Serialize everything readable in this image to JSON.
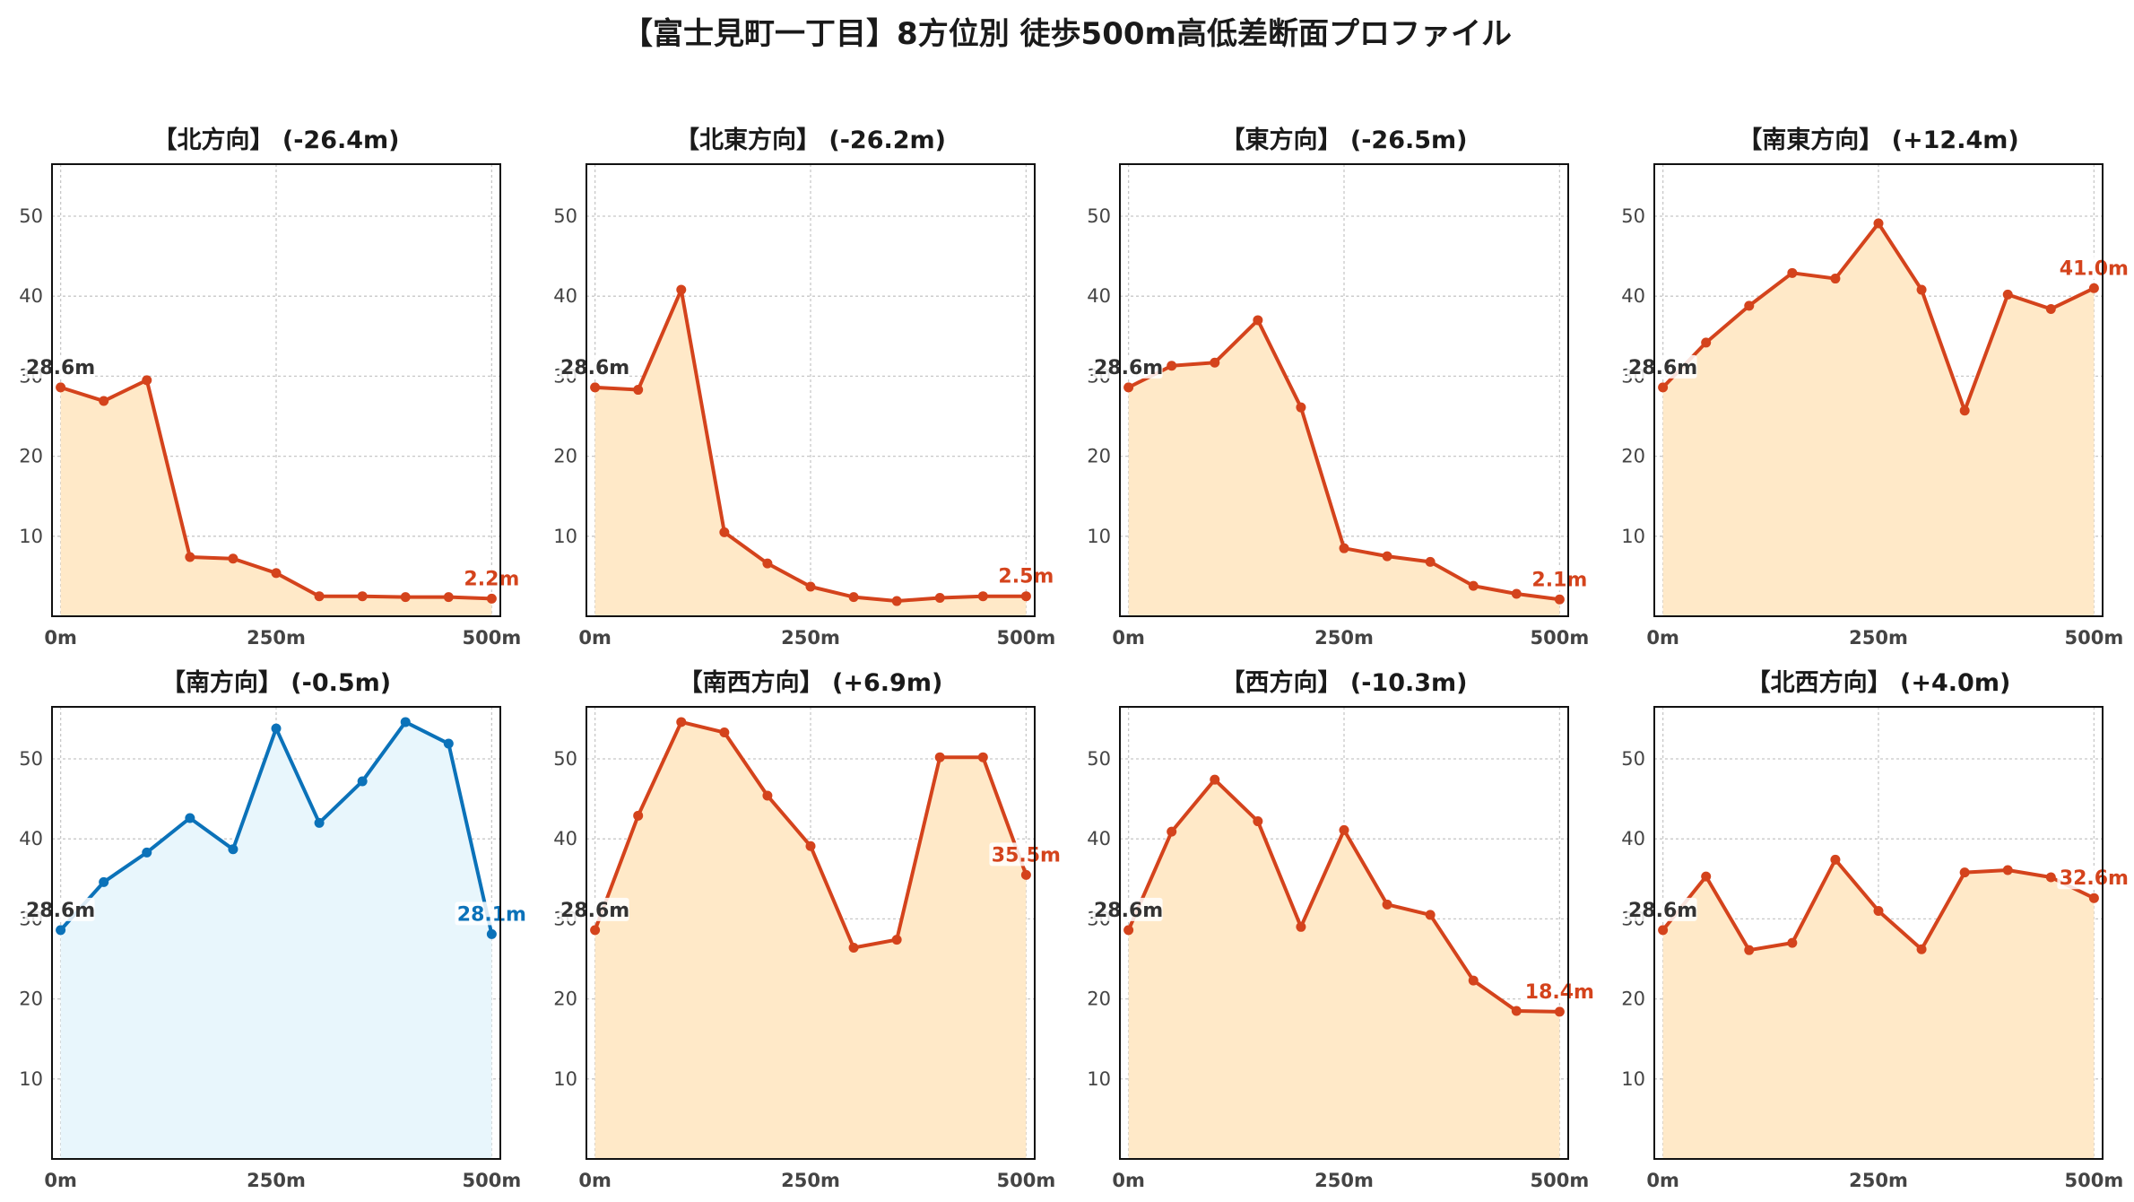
{
  "title": "【富士見町一丁目】8方位別 徒歩500m高低差断面プロファイル",
  "colors": {
    "descend_line": "#d4431c",
    "descend_fill": "#ffe9c8",
    "south_line": "#0b72b9",
    "south_fill": "#e8f6fc",
    "start_label": "#333333",
    "grid": "#c8c8c8",
    "tick_label": "#444444"
  },
  "chart_data": [
    {
      "type": "area",
      "title": "【北方向】 (-26.4m)",
      "start_label": "28.6m",
      "end_label": "2.2m",
      "x": [
        0,
        50,
        100,
        150,
        200,
        250,
        300,
        350,
        400,
        450,
        500
      ],
      "y": [
        28.6,
        26.9,
        29.5,
        7.4,
        7.2,
        5.4,
        2.5,
        2.5,
        2.4,
        2.4,
        2.2
      ],
      "xticks": [
        "0m",
        "250m",
        "500m"
      ],
      "yticks": [
        "10",
        "20",
        "30",
        "40",
        "50"
      ],
      "xlim": [
        -10,
        510
      ],
      "ylim": [
        0,
        56.5
      ],
      "grid": true,
      "color": "descend"
    },
    {
      "type": "area",
      "title": "【北東方向】 (-26.2m)",
      "start_label": "28.6m",
      "end_label": "2.5m",
      "x": [
        0,
        50,
        100,
        150,
        200,
        250,
        300,
        350,
        400,
        450,
        500
      ],
      "y": [
        28.6,
        28.3,
        40.8,
        10.5,
        6.6,
        3.7,
        2.4,
        1.9,
        2.3,
        2.5,
        2.5
      ],
      "xticks": [
        "0m",
        "250m",
        "500m"
      ],
      "yticks": [
        "10",
        "20",
        "30",
        "40",
        "50"
      ],
      "xlim": [
        -10,
        510
      ],
      "ylim": [
        0,
        56.5
      ],
      "grid": true,
      "color": "descend"
    },
    {
      "type": "area",
      "title": "【東方向】 (-26.5m)",
      "start_label": "28.6m",
      "end_label": "2.1m",
      "x": [
        0,
        50,
        100,
        150,
        200,
        250,
        300,
        350,
        400,
        450,
        500
      ],
      "y": [
        28.6,
        31.3,
        31.7,
        37.0,
        26.1,
        8.5,
        7.5,
        6.8,
        3.8,
        2.8,
        2.1
      ],
      "xticks": [
        "0m",
        "250m",
        "500m"
      ],
      "yticks": [
        "10",
        "20",
        "30",
        "40",
        "50"
      ],
      "xlim": [
        -10,
        510
      ],
      "ylim": [
        0,
        56.5
      ],
      "grid": true,
      "color": "descend"
    },
    {
      "type": "area",
      "title": "【南東方向】 (+12.4m)",
      "start_label": "28.6m",
      "end_label": "41.0m",
      "x": [
        0,
        50,
        100,
        150,
        200,
        250,
        300,
        350,
        400,
        450,
        500
      ],
      "y": [
        28.6,
        34.2,
        38.8,
        42.9,
        42.2,
        49.1,
        40.8,
        25.7,
        40.2,
        38.4,
        41.0
      ],
      "xticks": [
        "0m",
        "250m",
        "500m"
      ],
      "yticks": [
        "10",
        "20",
        "30",
        "40",
        "50"
      ],
      "xlim": [
        -10,
        510
      ],
      "ylim": [
        0,
        56.5
      ],
      "grid": true,
      "color": "descend"
    },
    {
      "type": "area",
      "title": "【南方向】 (-0.5m)",
      "start_label": "28.6m",
      "end_label": "28.1m",
      "x": [
        0,
        50,
        100,
        150,
        200,
        250,
        300,
        350,
        400,
        450,
        500
      ],
      "y": [
        28.6,
        34.6,
        38.3,
        42.6,
        38.7,
        53.8,
        42.0,
        47.2,
        54.6,
        51.9,
        28.1
      ],
      "xticks": [
        "0m",
        "250m",
        "500m"
      ],
      "yticks": [
        "10",
        "20",
        "30",
        "40",
        "50"
      ],
      "xlim": [
        -10,
        510
      ],
      "ylim": [
        0,
        56.5
      ],
      "grid": true,
      "color": "south"
    },
    {
      "type": "area",
      "title": "【南西方向】 (+6.9m)",
      "start_label": "28.6m",
      "end_label": "35.5m",
      "x": [
        0,
        50,
        100,
        150,
        200,
        250,
        300,
        350,
        400,
        450,
        500
      ],
      "y": [
        28.6,
        42.9,
        54.6,
        53.3,
        45.4,
        39.1,
        26.4,
        27.4,
        50.2,
        50.2,
        35.5
      ],
      "xticks": [
        "0m",
        "250m",
        "500m"
      ],
      "yticks": [
        "10",
        "20",
        "30",
        "40",
        "50"
      ],
      "xlim": [
        -10,
        510
      ],
      "ylim": [
        0,
        56.5
      ],
      "grid": true,
      "color": "descend"
    },
    {
      "type": "area",
      "title": "【西方向】 (-10.3m)",
      "start_label": "28.6m",
      "end_label": "18.4m",
      "x": [
        0,
        50,
        100,
        150,
        200,
        250,
        300,
        350,
        400,
        450,
        500
      ],
      "y": [
        28.6,
        40.9,
        47.4,
        42.2,
        29.0,
        41.1,
        31.8,
        30.5,
        22.3,
        18.5,
        18.4
      ],
      "xticks": [
        "0m",
        "250m",
        "500m"
      ],
      "yticks": [
        "10",
        "20",
        "30",
        "40",
        "50"
      ],
      "xlim": [
        -10,
        510
      ],
      "ylim": [
        0,
        56.5
      ],
      "grid": true,
      "color": "descend"
    },
    {
      "type": "area",
      "title": "【北西方向】 (+4.0m)",
      "start_label": "28.6m",
      "end_label": "32.6m",
      "x": [
        0,
        50,
        100,
        150,
        200,
        250,
        300,
        350,
        400,
        450,
        500
      ],
      "y": [
        28.6,
        35.3,
        26.1,
        27.0,
        37.4,
        31.0,
        26.2,
        35.8,
        36.1,
        35.2,
        32.6
      ],
      "xticks": [
        "0m",
        "250m",
        "500m"
      ],
      "yticks": [
        "10",
        "20",
        "30",
        "40",
        "50"
      ],
      "xlim": [
        -10,
        510
      ],
      "ylim": [
        0,
        56.5
      ],
      "grid": true,
      "color": "descend"
    }
  ]
}
